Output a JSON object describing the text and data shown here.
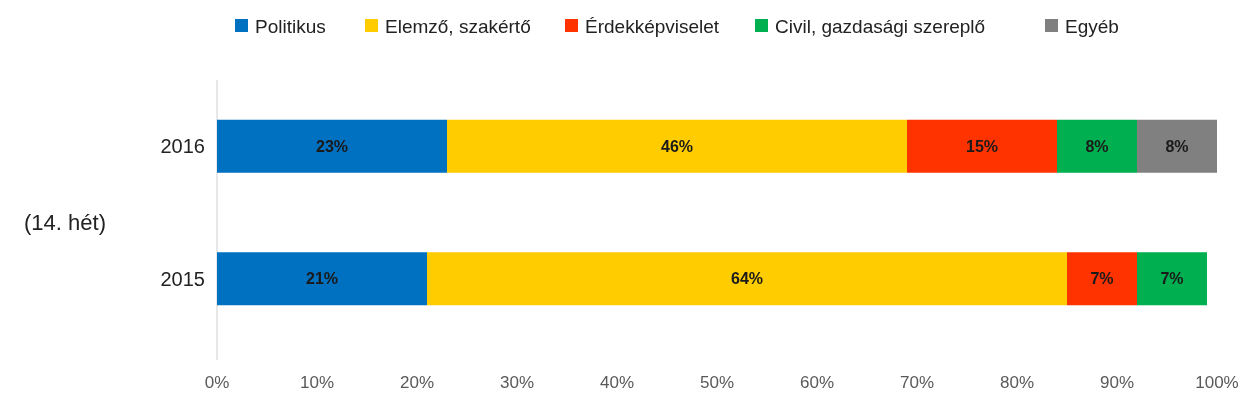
{
  "chart_data": {
    "type": "bar",
    "orientation": "horizontal",
    "stacked": true,
    "ylabel": "(14. hét)",
    "categories": [
      "2016",
      "2015"
    ],
    "series": [
      {
        "name": "Politikus",
        "color": "#0070c0",
        "values": [
          23,
          21
        ],
        "value_labels": [
          "23%",
          "21%"
        ]
      },
      {
        "name": "Elemző, szakértő",
        "color": "#ffcc00",
        "values": [
          46,
          64
        ],
        "value_labels": [
          "46%",
          "64%"
        ]
      },
      {
        "name": "Érdekképviselet",
        "color": "#ff3300",
        "values": [
          15,
          7
        ],
        "value_labels": [
          "15%",
          "7%"
        ]
      },
      {
        "name": "Civil, gazdasági szereplő",
        "color": "#00b050",
        "values": [
          8,
          7
        ],
        "value_labels": [
          "8%",
          "7%"
        ]
      },
      {
        "name": "Egyéb",
        "color": "#808080",
        "values": [
          8,
          null
        ],
        "value_labels": [
          "8%",
          null
        ]
      }
    ],
    "xlim": [
      0,
      100
    ],
    "xticks": [
      {
        "value": 0,
        "label": "0%"
      },
      {
        "value": 10,
        "label": "10%"
      },
      {
        "value": 20,
        "label": "20%"
      },
      {
        "value": 30,
        "label": "30%"
      },
      {
        "value": 40,
        "label": "40%"
      },
      {
        "value": 50,
        "label": "50%"
      },
      {
        "value": 60,
        "label": "60%"
      },
      {
        "value": 70,
        "label": "70%"
      },
      {
        "value": 80,
        "label": "80%"
      },
      {
        "value": 90,
        "label": "90%"
      },
      {
        "value": 100,
        "label": "100%"
      }
    ],
    "legend": "top",
    "grid": false
  }
}
